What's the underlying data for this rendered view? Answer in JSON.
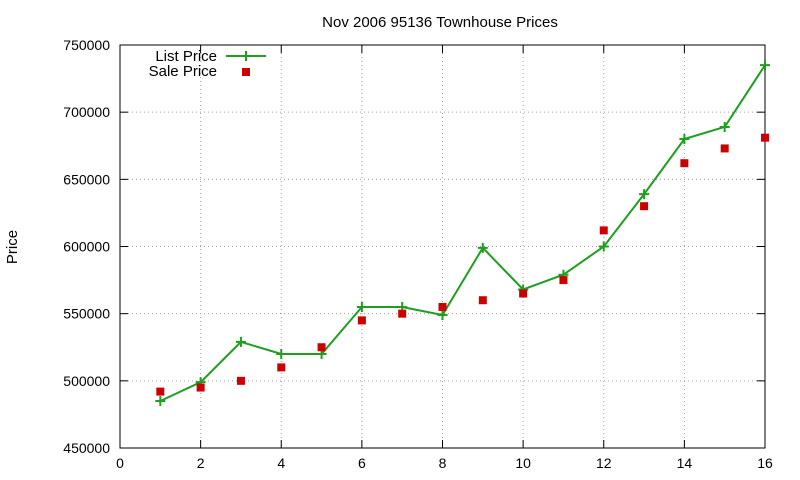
{
  "chart_data": {
    "type": "line",
    "title": "Nov 2006 95136 Townhouse Prices",
    "xlabel": "",
    "ylabel": "Price",
    "xlim": [
      0,
      16
    ],
    "ylim": [
      450000,
      750000
    ],
    "xticks": [
      0,
      2,
      4,
      6,
      8,
      10,
      12,
      14,
      16
    ],
    "yticks": [
      450000,
      500000,
      550000,
      600000,
      650000,
      700000,
      750000
    ],
    "grid": true,
    "legend_position": "top-left",
    "series": [
      {
        "name": "List Price",
        "style": "line-with-plus-markers",
        "color": "#1f9e1f",
        "x": [
          1,
          2,
          3,
          4,
          5,
          6,
          7,
          8,
          9,
          10,
          11,
          12,
          13,
          14,
          15,
          16
        ],
        "values": [
          485000,
          499000,
          529000,
          520000,
          520000,
          555000,
          555000,
          549000,
          599000,
          568000,
          579000,
          600000,
          639000,
          680000,
          689000,
          735000
        ]
      },
      {
        "name": "Sale Price",
        "style": "square-markers",
        "color": "#cc0000",
        "x": [
          1,
          2,
          3,
          4,
          5,
          6,
          7,
          8,
          9,
          10,
          11,
          12,
          13,
          14,
          15,
          16
        ],
        "values": [
          492000,
          495000,
          500000,
          510000,
          525000,
          545000,
          550000,
          555000,
          560000,
          565000,
          575000,
          612000,
          630000,
          662000,
          673000,
          681000
        ]
      }
    ]
  }
}
